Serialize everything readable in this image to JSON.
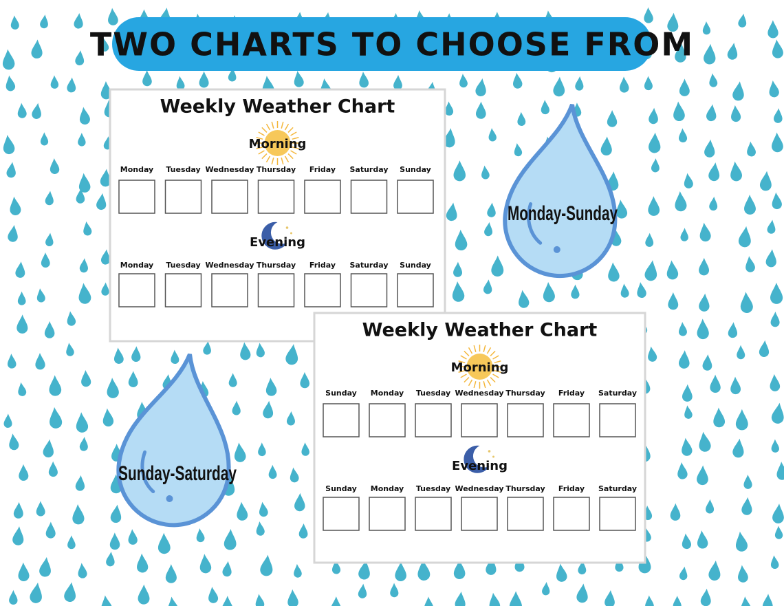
{
  "banner": {
    "title": "TWO CHARTS TO CHOOSE FROM"
  },
  "charts": [
    {
      "title": "Weekly Weather Chart",
      "sections": [
        {
          "label": "Morning",
          "days": [
            "Monday",
            "Tuesday",
            "Wednesday",
            "Thursday",
            "Friday",
            "Saturday",
            "Sunday"
          ]
        },
        {
          "label": "Evening",
          "days": [
            "Monday",
            "Tuesday",
            "Wednesday",
            "Thursday",
            "Friday",
            "Saturday",
            "Sunday"
          ]
        }
      ]
    },
    {
      "title": "Weekly Weather Chart",
      "sections": [
        {
          "label": "Morning",
          "days": [
            "Sunday",
            "Monday",
            "Tuesday",
            "Wednesday",
            "Thursday",
            "Friday",
            "Saturday"
          ]
        },
        {
          "label": "Evening",
          "days": [
            "Sunday",
            "Monday",
            "Tuesday",
            "Wednesday",
            "Thursday",
            "Friday",
            "Saturday"
          ]
        }
      ]
    }
  ],
  "drops": [
    {
      "label": "Monday-Sunday"
    },
    {
      "label": "Sunday-Saturday"
    }
  ]
}
